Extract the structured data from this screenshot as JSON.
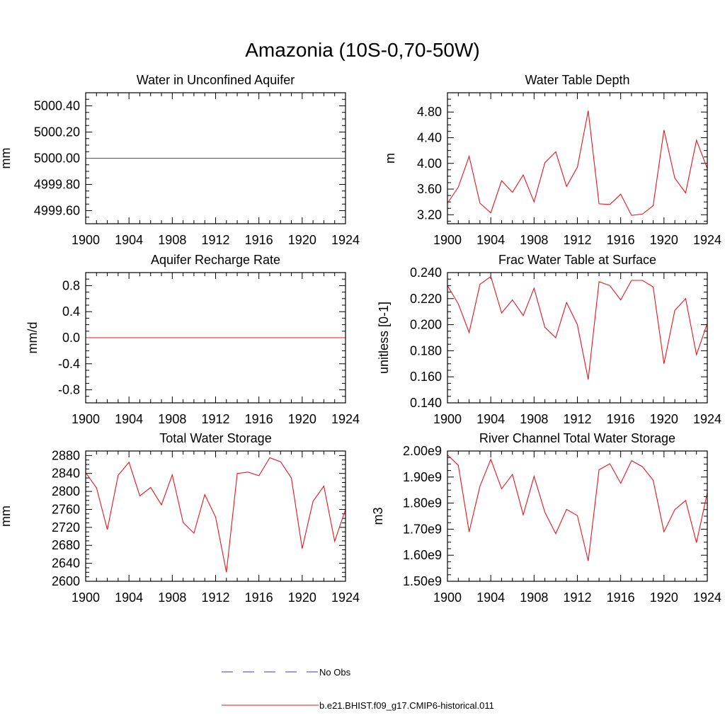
{
  "title": "Amazonia (10S-0,70-50W)",
  "legend": {
    "entries": [
      {
        "label": "No Obs",
        "style": "dashed",
        "color": "#3b3bb0"
      },
      {
        "label": "b.e21.BHIST.f09_g17.CMIP6-historical.011",
        "style": "solid",
        "color": "#e8141b"
      }
    ]
  },
  "chart_data": [
    {
      "type": "line",
      "title": "Water in Unconfined Aquifer",
      "ylabel": "mm",
      "xlim": [
        1900,
        1924
      ],
      "xticks": [
        "1900",
        "1904",
        "1908",
        "1912",
        "1916",
        "1920",
        "1924"
      ],
      "ylim": [
        4999.5,
        5000.5
      ],
      "yticks": [
        "5000.40",
        "5000.20",
        "5000.00",
        "4999.80",
        "4999.60"
      ],
      "ytick_values": [
        5000.4,
        5000.2,
        5000.0,
        4999.8,
        4999.6
      ],
      "x": [
        1900,
        1901,
        1902,
        1903,
        1904,
        1905,
        1906,
        1907,
        1908,
        1909,
        1910,
        1911,
        1912,
        1913,
        1914,
        1915,
        1916,
        1917,
        1918,
        1919,
        1920,
        1921,
        1922,
        1923,
        1924
      ],
      "series": [
        {
          "name": "b.e21.BHIST.f09_g17.CMIP6-historical.011",
          "color": "#e8141b",
          "values": [
            5000,
            5000,
            5000,
            5000,
            5000,
            5000,
            5000,
            5000,
            5000,
            5000,
            5000,
            5000,
            5000,
            5000,
            5000,
            5000,
            5000,
            5000,
            5000,
            5000,
            5000,
            5000,
            5000,
            5000,
            5000
          ]
        }
      ]
    },
    {
      "type": "line",
      "title": "Water Table Depth",
      "ylabel": "m",
      "xlim": [
        1900,
        1924
      ],
      "xticks": [
        "1900",
        "1904",
        "1908",
        "1912",
        "1916",
        "1920",
        "1924"
      ],
      "ylim": [
        3.06,
        5.1
      ],
      "yticks": [
        "4.80",
        "4.40",
        "4.00",
        "3.60",
        "3.20"
      ],
      "ytick_values": [
        4.8,
        4.4,
        4.0,
        3.6,
        3.2
      ],
      "x": [
        1900,
        1901,
        1902,
        1903,
        1904,
        1905,
        1906,
        1907,
        1908,
        1909,
        1910,
        1911,
        1912,
        1913,
        1914,
        1915,
        1916,
        1917,
        1918,
        1919,
        1920,
        1921,
        1922,
        1923,
        1924
      ],
      "series": [
        {
          "name": "b.e21.BHIST.f09_g17.CMIP6-historical.011",
          "color": "#e8141b",
          "values": [
            3.38,
            3.63,
            4.11,
            3.38,
            3.23,
            3.73,
            3.55,
            3.82,
            3.4,
            4.01,
            4.18,
            3.64,
            3.94,
            4.82,
            3.37,
            3.36,
            3.52,
            3.19,
            3.21,
            3.34,
            4.52,
            3.77,
            3.54,
            4.36,
            3.92
          ]
        }
      ]
    },
    {
      "type": "line",
      "title": "Aquifer Recharge Rate",
      "ylabel": "mm/d",
      "xlim": [
        1900,
        1924
      ],
      "xticks": [
        "1900",
        "1904",
        "1908",
        "1912",
        "1916",
        "1920",
        "1924"
      ],
      "ylim": [
        -1.0,
        1.0
      ],
      "yticks": [
        "0.8",
        "0.4",
        "0.0",
        "-0.4",
        "-0.8"
      ],
      "ytick_values": [
        0.8,
        0.4,
        0.0,
        -0.4,
        -0.8
      ],
      "x": [
        1900,
        1901,
        1902,
        1903,
        1904,
        1905,
        1906,
        1907,
        1908,
        1909,
        1910,
        1911,
        1912,
        1913,
        1914,
        1915,
        1916,
        1917,
        1918,
        1919,
        1920,
        1921,
        1922,
        1923,
        1924
      ],
      "series": [
        {
          "name": "b.e21.BHIST.f09_g17.CMIP6-historical.011",
          "color": "#e8141b",
          "values": [
            0,
            0,
            0,
            0,
            0,
            0,
            0,
            0,
            0,
            0,
            0,
            0,
            0,
            0,
            0,
            0,
            0,
            0,
            0,
            0,
            0,
            0,
            0,
            0,
            0
          ]
        }
      ]
    },
    {
      "type": "line",
      "title": "Frac Water Table at Surface",
      "ylabel": "unitless [0-1]",
      "xlim": [
        1900,
        1924
      ],
      "xticks": [
        "1900",
        "1904",
        "1908",
        "1912",
        "1916",
        "1920",
        "1924"
      ],
      "ylim": [
        0.14,
        0.24
      ],
      "yticks": [
        "0.240",
        "0.220",
        "0.200",
        "0.180",
        "0.160",
        "0.140"
      ],
      "ytick_values": [
        0.24,
        0.22,
        0.2,
        0.18,
        0.16,
        0.14
      ],
      "x": [
        1900,
        1901,
        1902,
        1903,
        1904,
        1905,
        1906,
        1907,
        1908,
        1909,
        1910,
        1911,
        1912,
        1913,
        1914,
        1915,
        1916,
        1917,
        1918,
        1919,
        1920,
        1921,
        1922,
        1923,
        1924
      ],
      "series": [
        {
          "name": "b.e21.BHIST.f09_g17.CMIP6-historical.011",
          "color": "#e8141b",
          "values": [
            0.23,
            0.216,
            0.194,
            0.231,
            0.237,
            0.209,
            0.219,
            0.207,
            0.228,
            0.198,
            0.19,
            0.217,
            0.2,
            0.158,
            0.233,
            0.23,
            0.219,
            0.234,
            0.234,
            0.229,
            0.17,
            0.211,
            0.22,
            0.177,
            0.201
          ]
        }
      ]
    },
    {
      "type": "line",
      "title": "Total Water Storage",
      "ylabel": "mm",
      "xlim": [
        1900,
        1924
      ],
      "xticks": [
        "1900",
        "1904",
        "1908",
        "1912",
        "1916",
        "1920",
        "1924"
      ],
      "ylim": [
        2600,
        2890
      ],
      "yticks": [
        "2880",
        "2840",
        "2800",
        "2760",
        "2720",
        "2680",
        "2640",
        "2600"
      ],
      "ytick_values": [
        2880,
        2840,
        2800,
        2760,
        2720,
        2680,
        2640,
        2600
      ],
      "x": [
        1900,
        1901,
        1902,
        1903,
        1904,
        1905,
        1906,
        1907,
        1908,
        1909,
        1910,
        1911,
        1912,
        1913,
        1914,
        1915,
        1916,
        1917,
        1918,
        1919,
        1920,
        1921,
        1922,
        1923,
        1924
      ],
      "series": [
        {
          "name": "b.e21.BHIST.f09_g17.CMIP6-historical.011",
          "color": "#e8141b",
          "values": [
            2842,
            2808,
            2715,
            2836,
            2865,
            2790,
            2809,
            2770,
            2837,
            2731,
            2707,
            2793,
            2743,
            2620,
            2840,
            2843,
            2835,
            2875,
            2866,
            2830,
            2673,
            2778,
            2812,
            2689,
            2760
          ]
        }
      ]
    },
    {
      "type": "line",
      "title": "River Channel Total Water Storage",
      "ylabel": "m3",
      "xlim": [
        1900,
        1924
      ],
      "xticks": [
        "1900",
        "1904",
        "1908",
        "1912",
        "1916",
        "1920",
        "1924"
      ],
      "ylim": [
        1500000000.0,
        2000000000.0
      ],
      "yticks": [
        "2.00e9",
        "1.90e9",
        "1.80e9",
        "1.70e9",
        "1.60e9",
        "1.50e9"
      ],
      "ytick_values": [
        2000000000.0,
        1900000000.0,
        1800000000.0,
        1700000000.0,
        1600000000.0,
        1500000000.0
      ],
      "x": [
        1900,
        1901,
        1902,
        1903,
        1904,
        1905,
        1906,
        1907,
        1908,
        1909,
        1910,
        1911,
        1912,
        1913,
        1914,
        1915,
        1916,
        1917,
        1918,
        1919,
        1920,
        1921,
        1922,
        1923,
        1924
      ],
      "series": [
        {
          "name": "b.e21.BHIST.f09_g17.CMIP6-historical.011",
          "color": "#e8141b",
          "values": [
            1985000000.0,
            1945000000.0,
            1690000000.0,
            1865000000.0,
            1968000000.0,
            1855000000.0,
            1910000000.0,
            1755000000.0,
            1903000000.0,
            1765000000.0,
            1683000000.0,
            1776000000.0,
            1752000000.0,
            1578000000.0,
            1928000000.0,
            1951000000.0,
            1876000000.0,
            1963000000.0,
            1940000000.0,
            1888000000.0,
            1690000000.0,
            1775000000.0,
            1810000000.0,
            1648000000.0,
            1840000000.0
          ]
        }
      ]
    }
  ]
}
